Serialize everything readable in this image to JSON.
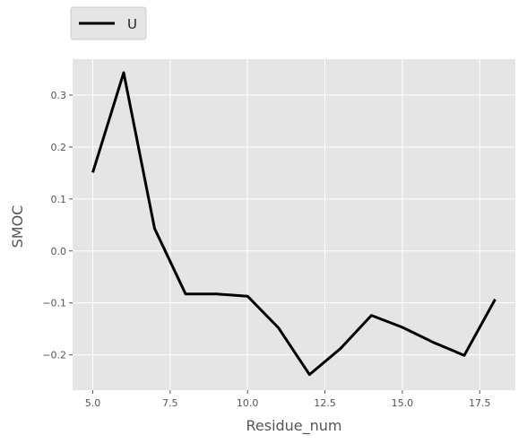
{
  "chart_data": {
    "type": "line",
    "xlabel": "Residue_num",
    "ylabel": "SMOC",
    "xlim": [
      4.35,
      18.65
    ],
    "ylim": [
      -0.268,
      0.369
    ],
    "x_ticks": [
      5.0,
      7.5,
      10.0,
      12.5,
      15.0,
      17.5
    ],
    "x_tick_labels": [
      "5.0",
      "7.5",
      "10.0",
      "12.5",
      "15.0",
      "17.5"
    ],
    "y_ticks": [
      -0.2,
      -0.1,
      0.0,
      0.1,
      0.2,
      0.3
    ],
    "y_tick_labels": [
      "−0.2",
      "−0.1",
      "0.0",
      "0.1",
      "0.2",
      "0.3"
    ],
    "grid": true,
    "legend_position": "above-left",
    "series": [
      {
        "name": "U",
        "color": "#000000",
        "x": [
          5,
          6,
          7,
          8,
          9,
          10,
          11,
          12,
          13,
          14,
          15,
          16,
          17,
          18
        ],
        "y": [
          0.151,
          0.343,
          0.043,
          -0.083,
          -0.083,
          -0.087,
          -0.148,
          -0.238,
          -0.188,
          -0.124,
          -0.147,
          -0.176,
          -0.201,
          -0.093
        ]
      }
    ]
  },
  "colors": {
    "plot_background": "#e5e5e5",
    "grid": "#ffffff",
    "legend_background": "#e5e5e5"
  }
}
